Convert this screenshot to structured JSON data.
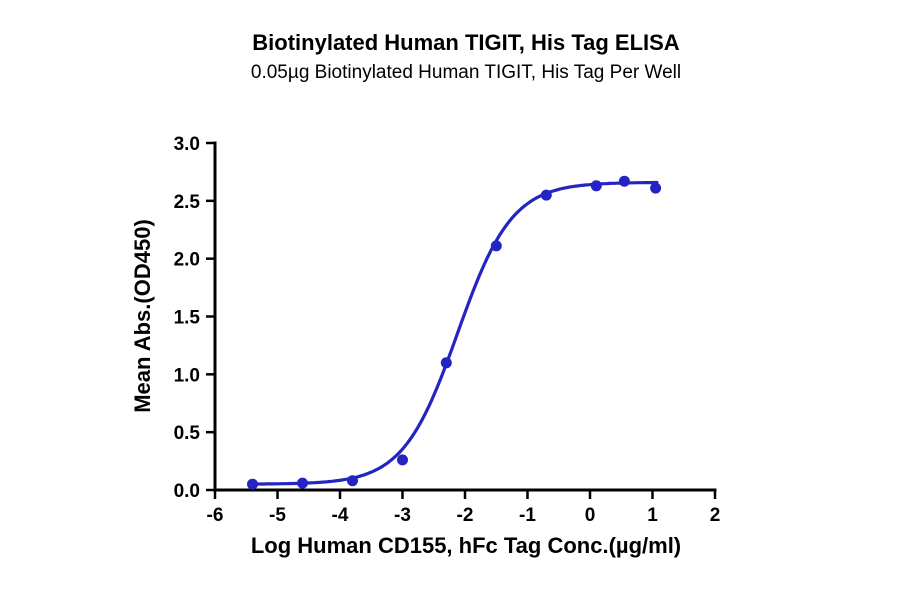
{
  "page": {
    "background": "#ffffff"
  },
  "chart_data": {
    "type": "scatter",
    "title": "Biotinylated Human TIGIT, His Tag ELISA",
    "subtitle": "0.05µg Biotinylated Human TIGIT, His Tag Per Well",
    "xlabel": "Log Human CD155, hFc Tag Conc.(µg/ml)",
    "ylabel": "Mean Abs.(OD450)",
    "xlim": [
      -6,
      2
    ],
    "ylim": [
      0,
      3
    ],
    "x_tick_labels": [
      "-6",
      "-5",
      "-4",
      "-3",
      "-2",
      "-1",
      "0",
      "1",
      "2"
    ],
    "y_tick_labels": [
      "0.0",
      "0.5",
      "1.0",
      "1.5",
      "2.0",
      "2.5",
      "3.0"
    ],
    "grid": false,
    "legend": "none",
    "axis_color": "#000000",
    "series": [
      {
        "color": "#2424c2",
        "marker": "circle",
        "points": [
          {
            "x": -5.4,
            "y": 0.05
          },
          {
            "x": -4.6,
            "y": 0.06
          },
          {
            "x": -3.8,
            "y": 0.08
          },
          {
            "x": -3.0,
            "y": 0.26
          },
          {
            "x": -2.3,
            "y": 1.1
          },
          {
            "x": -1.5,
            "y": 2.11
          },
          {
            "x": -0.7,
            "y": 2.55
          },
          {
            "x": 0.1,
            "y": 2.63
          },
          {
            "x": 0.55,
            "y": 2.67
          },
          {
            "x": 1.05,
            "y": 2.61
          }
        ],
        "fit_4pl": {
          "bottom": 0.05,
          "top": 2.66,
          "logEC50": -2.12,
          "hill": 1.0,
          "x_start": -5.45,
          "x_end": 1.1
        }
      }
    ]
  }
}
